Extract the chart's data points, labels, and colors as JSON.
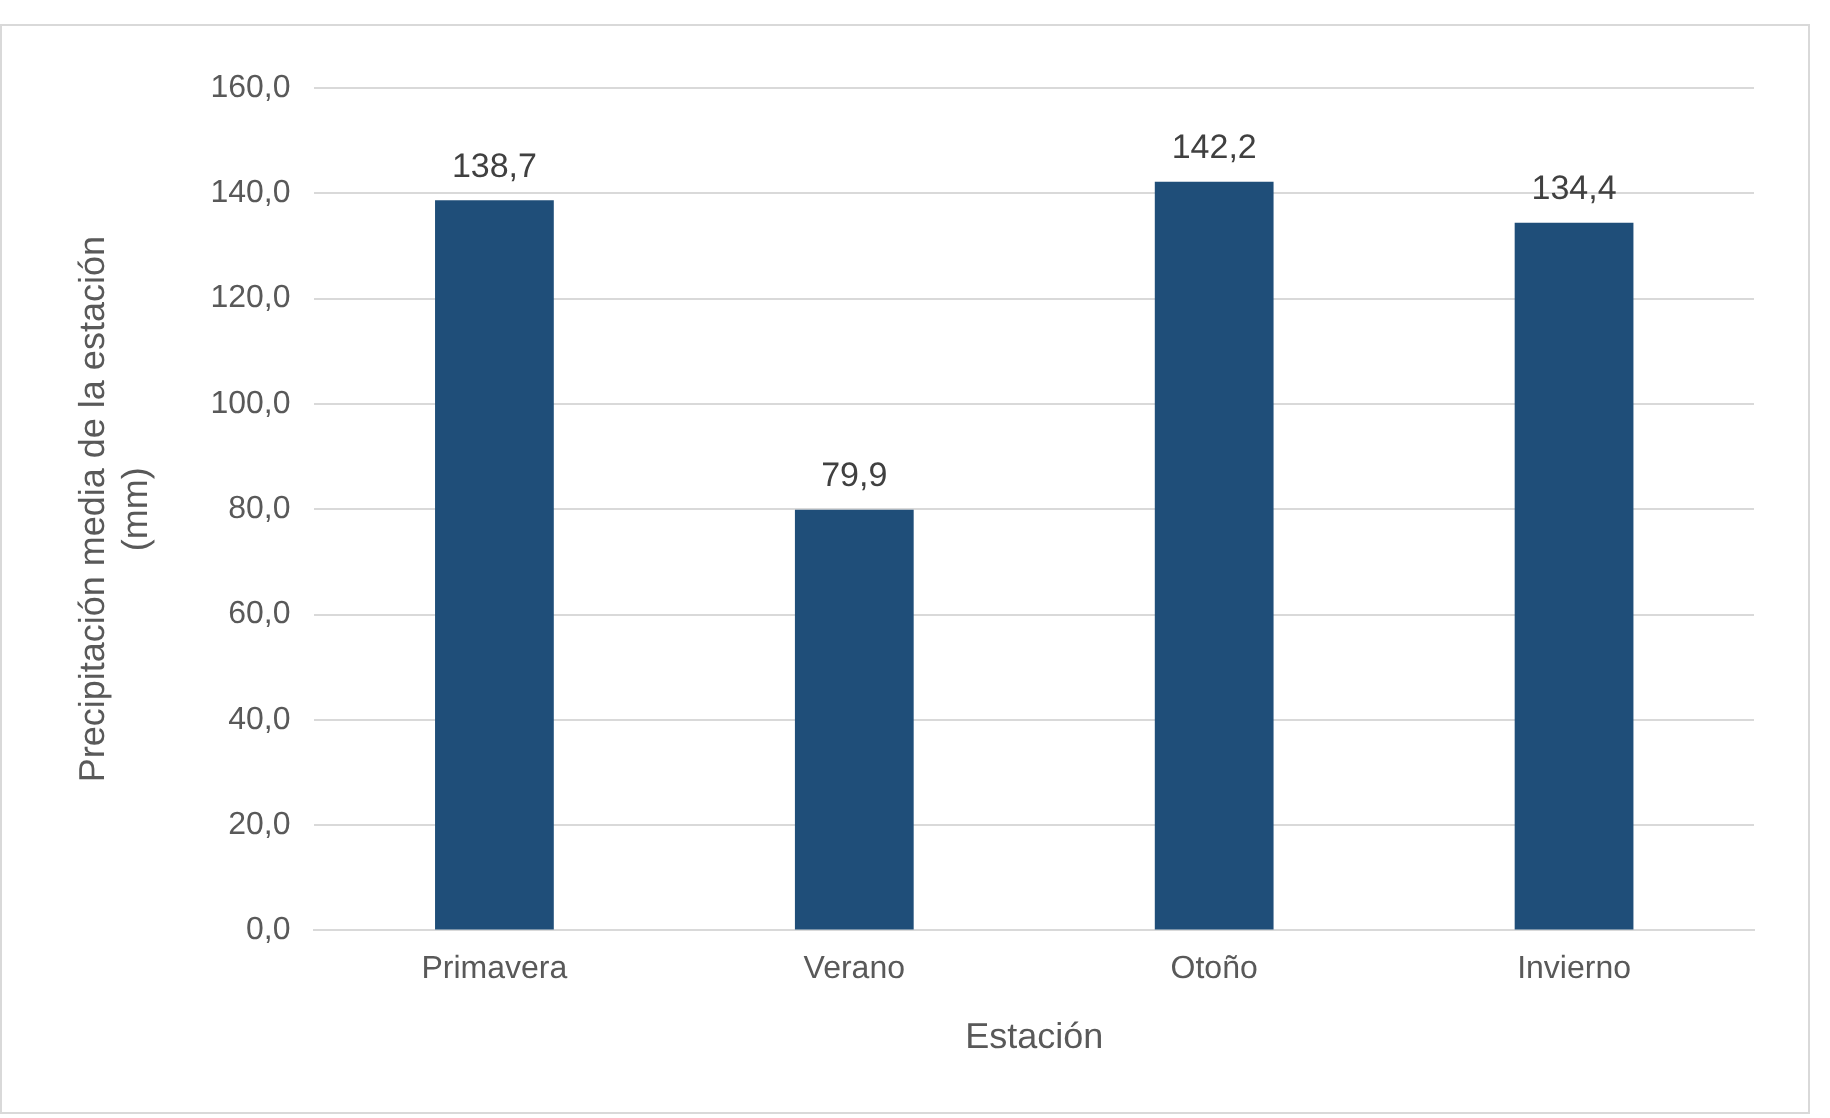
{
  "chart_data": {
    "type": "bar",
    "xlabel": "Estación",
    "ylabel": "Precipitación media de la estación (mm)",
    "categories": [
      "Primavera",
      "Verano",
      "Otoño",
      "Invierno"
    ],
    "values": [
      138.7,
      79.9,
      142.2,
      134.4
    ],
    "value_labels": [
      "138,7",
      "79,9",
      "142,2",
      "134,4"
    ],
    "color": "#1f4e79",
    "ylim": [
      0,
      160
    ],
    "yticks": [
      {
        "value": 0,
        "label": "0,0"
      },
      {
        "value": 20,
        "label": "20,0"
      },
      {
        "value": 40,
        "label": "40,0"
      },
      {
        "value": 60,
        "label": "60,0"
      },
      {
        "value": 80,
        "label": "80,0"
      },
      {
        "value": 100,
        "label": "100,0"
      },
      {
        "value": 120,
        "label": "120,0"
      },
      {
        "value": 140,
        "label": "140,0"
      },
      {
        "value": 160,
        "label": "160,0"
      }
    ],
    "grid": "y",
    "legend": false
  }
}
